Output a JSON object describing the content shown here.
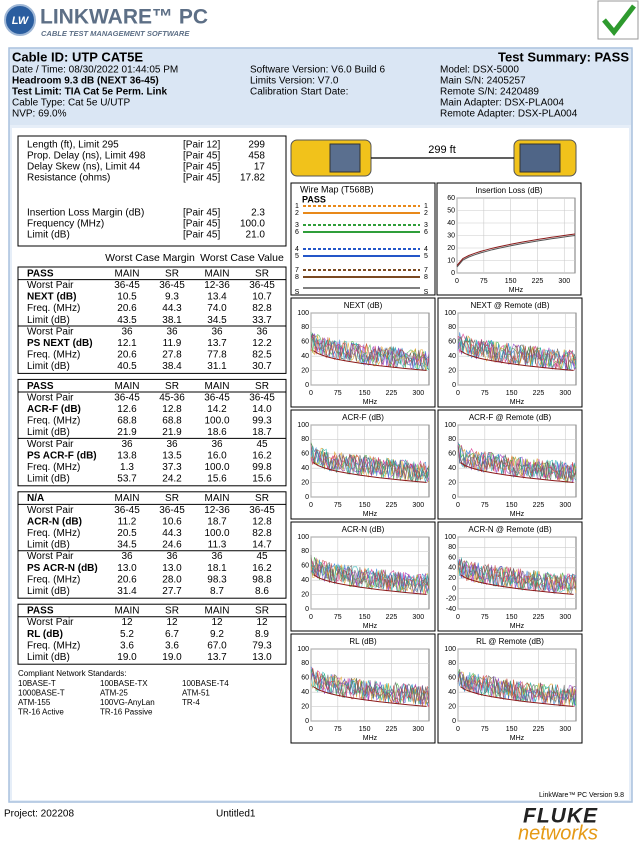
{
  "header": {
    "logo_mark": "LW",
    "logo": "LINKWARE™ PC",
    "tagline": "CABLE TEST MANAGEMENT SOFTWARE"
  },
  "info": {
    "cable_id": "Cable ID: UTP CAT5E",
    "summary": "Test Summary: PASS",
    "left": [
      "Date / Time: 08/30/2022  01:44:05 PM",
      "Headroom 9.3 dB (NEXT 36-45)",
      "Test Limit: TIA Cat 5e Perm. Link",
      "Cable Type: Cat 5e U/UTP",
      "NVP: 69.0%"
    ],
    "middle": [
      "Software Version: V6.0 Build 6",
      "Limits Version: V7.0",
      "Calibration Start Date:"
    ],
    "right": [
      "Model: DSX-5000",
      "Main S/N: 2405257",
      "Remote S/N: 2420489",
      "Main Adapter: DSX-PLA004",
      "Remote Adapter: DSX-PLA004"
    ]
  },
  "summary_box": {
    "rows": [
      [
        "Length (ft), Limit 295",
        "[Pair 12]",
        "299"
      ],
      [
        "Prop. Delay (ns), Limit 498",
        "[Pair 45]",
        "458"
      ],
      [
        "Delay Skew (ns), Limit 44",
        "[Pair 45]",
        "17"
      ],
      [
        "Resistance (ohms)",
        "[Pair 45]",
        "17.82"
      ],
      [
        "Insertion Loss Margin (dB)",
        "[Pair 45]",
        "2.3"
      ],
      [
        "Frequency (MHz)",
        "[Pair 45]",
        "100.0"
      ],
      [
        "Limit (dB)",
        "[Pair 45]",
        "21.0"
      ]
    ]
  },
  "table": {
    "headers": [
      "Worst Case Margin",
      "Worst Case Value"
    ],
    "groups": [
      {
        "header": [
          "PASS",
          "MAIN",
          "SR",
          "MAIN",
          "SR"
        ],
        "rows": [
          [
            "Worst Pair",
            "36-45",
            "36-45",
            "12-36",
            "36-45"
          ],
          [
            "NEXT (dB)",
            "10.5",
            "9.3",
            "13.4",
            "10.7"
          ],
          [
            "Freq. (MHz)",
            "20.6",
            "44.3",
            "74.0",
            "82.8"
          ],
          [
            "Limit (dB)",
            "43.5",
            "38.1",
            "34.5",
            "33.7"
          ],
          [
            "Worst Pair",
            "36",
            "36",
            "36",
            "36"
          ],
          [
            "PS NEXT (dB)",
            "12.1",
            "11.9",
            "13.7",
            "12.2"
          ],
          [
            "Freq. (MHz)",
            "20.6",
            "27.8",
            "77.8",
            "82.5"
          ],
          [
            "Limit (dB)",
            "40.5",
            "38.4",
            "31.1",
            "30.7"
          ]
        ]
      },
      {
        "header": [
          "PASS",
          "MAIN",
          "SR",
          "MAIN",
          "SR"
        ],
        "rows": [
          [
            "Worst Pair",
            "36-45",
            "45-36",
            "36-45",
            "36-45"
          ],
          [
            "ACR-F (dB)",
            "12.6",
            "12.8",
            "14.2",
            "14.0"
          ],
          [
            "Freq. (MHz)",
            "68.8",
            "68.8",
            "100.0",
            "99.3"
          ],
          [
            "Limit (dB)",
            "21.9",
            "21.9",
            "18.6",
            "18.7"
          ],
          [
            "Worst Pair",
            "36",
            "36",
            "36",
            "45"
          ],
          [
            "PS ACR-F (dB)",
            "13.8",
            "13.5",
            "16.0",
            "16.2"
          ],
          [
            "Freq. (MHz)",
            "1.3",
            "37.3",
            "100.0",
            "99.8"
          ],
          [
            "Limit (dB)",
            "53.7",
            "24.2",
            "15.6",
            "15.6"
          ]
        ]
      },
      {
        "header": [
          "N/A",
          "MAIN",
          "SR",
          "MAIN",
          "SR"
        ],
        "rows": [
          [
            "Worst Pair",
            "36-45",
            "36-45",
            "12-36",
            "36-45"
          ],
          [
            "ACR-N (dB)",
            "11.2",
            "10.6",
            "18.7",
            "12.8"
          ],
          [
            "Freq. (MHz)",
            "20.5",
            "44.3",
            "100.0",
            "82.8"
          ],
          [
            "Limit (dB)",
            "34.5",
            "24.6",
            "11.3",
            "14.7"
          ],
          [
            "Worst Pair",
            "36",
            "36",
            "36",
            "45"
          ],
          [
            "PS ACR-N (dB)",
            "13.0",
            "13.0",
            "18.1",
            "16.2"
          ],
          [
            "Freq. (MHz)",
            "20.6",
            "28.0",
            "98.3",
            "98.8"
          ],
          [
            "Limit (dB)",
            "31.4",
            "27.7",
            "8.7",
            "8.6"
          ]
        ]
      },
      {
        "header": [
          "PASS",
          "MAIN",
          "SR",
          "MAIN",
          "SR"
        ],
        "rows": [
          [
            "Worst Pair",
            "12",
            "12",
            "12",
            "12"
          ],
          [
            "RL (dB)",
            "5.2",
            "6.7",
            "9.2",
            "8.9"
          ],
          [
            "Freq. (MHz)",
            "3.6",
            "3.6",
            "67.0",
            "79.3"
          ],
          [
            "Limit (dB)",
            "19.0",
            "19.0",
            "13.7",
            "13.0"
          ]
        ]
      }
    ]
  },
  "standards": {
    "title": "Compliant Network Standards:",
    "items": [
      "10BASE-T",
      "100BASE-TX",
      "100BASE-T4",
      "1000BASE-T",
      "ATM-25",
      "ATM-51",
      "ATM-155",
      "100VG-AnyLan",
      "TR-4",
      "TR-16 Active",
      "TR-16 Passive"
    ]
  },
  "length_label": "299 ft",
  "wire_map": {
    "title": "Wire Map (T568B)",
    "status": "PASS",
    "pins": [
      "1",
      "2",
      "3",
      "6",
      "4",
      "5",
      "7",
      "8",
      "S"
    ]
  },
  "insertion_loss": {
    "title": "Insertion Loss (dB)",
    "ylim": [
      0,
      60
    ],
    "yticks": [
      0,
      10,
      20,
      30,
      40,
      50,
      60
    ],
    "xlim": [
      0,
      330
    ],
    "xticks": [
      0,
      75,
      150,
      225,
      300
    ],
    "xlabel": "MHz"
  },
  "charts": [
    {
      "title": "NEXT (dB)",
      "ylim": [
        0,
        100
      ],
      "yticks": [
        0,
        20,
        40,
        60,
        80,
        100
      ],
      "xlim": [
        0,
        330
      ],
      "xticks": [
        0,
        75,
        150,
        225,
        300
      ],
      "xlabel": "MHz"
    },
    {
      "title": "NEXT @ Remote (dB)",
      "ylim": [
        0,
        100
      ],
      "yticks": [
        0,
        20,
        40,
        60,
        80,
        100
      ],
      "xlim": [
        0,
        330
      ],
      "xticks": [
        0,
        75,
        150,
        225,
        300
      ],
      "xlabel": "MHz"
    },
    {
      "title": "ACR-F (dB)",
      "ylim": [
        0,
        100
      ],
      "yticks": [
        0,
        20,
        40,
        60,
        80,
        100
      ],
      "xlim": [
        0,
        330
      ],
      "xticks": [
        0,
        75,
        150,
        225,
        300
      ],
      "xlabel": "MHz"
    },
    {
      "title": "ACR-F @ Remote (dB)",
      "ylim": [
        0,
        100
      ],
      "yticks": [
        0,
        20,
        40,
        60,
        80,
        100
      ],
      "xlim": [
        0,
        330
      ],
      "xticks": [
        0,
        75,
        150,
        225,
        300
      ],
      "xlabel": "MHz"
    },
    {
      "title": "ACR-N (dB)",
      "ylim": [
        0,
        100
      ],
      "yticks": [
        0,
        20,
        40,
        60,
        80,
        100
      ],
      "xlim": [
        0,
        330
      ],
      "xticks": [
        0,
        75,
        150,
        225,
        300
      ],
      "xlabel": "MHz"
    },
    {
      "title": "ACR-N @ Remote (dB)",
      "ylim": [
        -40,
        100
      ],
      "yticks": [
        -40,
        -20,
        0,
        20,
        40,
        60,
        80,
        100
      ],
      "xlim": [
        0,
        330
      ],
      "xticks": [
        0,
        75,
        150,
        225,
        300
      ],
      "xlabel": "MHz"
    },
    {
      "title": "RL (dB)",
      "ylim": [
        0,
        100
      ],
      "yticks": [
        0,
        20,
        40,
        60,
        80,
        100
      ],
      "xlim": [
        0,
        330
      ],
      "xticks": [
        0,
        75,
        150,
        225,
        300
      ],
      "xlabel": "MHz"
    },
    {
      "title": "RL @ Remote (dB)",
      "ylim": [
        0,
        100
      ],
      "yticks": [
        0,
        20,
        40,
        60,
        80,
        100
      ],
      "xlim": [
        0,
        330
      ],
      "xticks": [
        0,
        75,
        150,
        225,
        300
      ],
      "xlabel": "MHz"
    }
  ],
  "footer": {
    "version": "LinkWare™ PC Version 9.8",
    "project": "Project: 202208",
    "file": "Untitled1",
    "brand": "FLUKE",
    "brand_sub": "networks"
  }
}
